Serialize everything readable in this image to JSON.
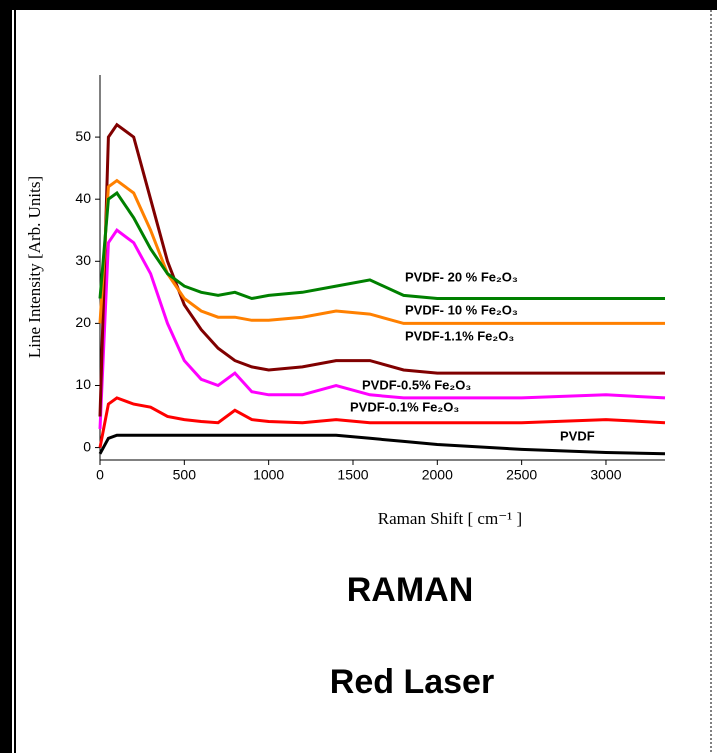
{
  "chart_data": {
    "type": "line",
    "title": "RAMAN",
    "subtitle": "Red Laser",
    "x_label": "Raman Shift [ cm⁻¹ ]",
    "y_label": "Line Intensity [Arb. Units]",
    "xlim": [
      0,
      3350
    ],
    "ylim": [
      -2,
      60
    ],
    "xticks": [
      0,
      500,
      1000,
      1500,
      2000,
      2500,
      3000
    ],
    "yticks": [
      0,
      10,
      20,
      30,
      40,
      50
    ],
    "x": [
      0,
      50,
      100,
      200,
      300,
      400,
      500,
      600,
      700,
      800,
      900,
      1000,
      1200,
      1400,
      1600,
      1800,
      2000,
      2500,
      3000,
      3350
    ],
    "series": [
      {
        "name": "PVDF",
        "color": "#000000",
        "values": [
          -1,
          1.5,
          2,
          2,
          2,
          2,
          2,
          2,
          2,
          2,
          2,
          2,
          2,
          2,
          1.5,
          1,
          0.5,
          -0.3,
          -0.8,
          -1
        ]
      },
      {
        "name": "PVDF-0.1% Fe₂O₃",
        "color": "#ff0000",
        "values": [
          0,
          7,
          8,
          7,
          6.5,
          5,
          4.5,
          4.2,
          4,
          6,
          4.5,
          4.2,
          4,
          4.5,
          4,
          4,
          4,
          4,
          4.5,
          4
        ]
      },
      {
        "name": "PVDF-0.5% Fe₂O₃",
        "color": "#ff00ff",
        "values": [
          3,
          33,
          35,
          33,
          28,
          20,
          14,
          11,
          10,
          12,
          9,
          8.5,
          8.5,
          10,
          8.5,
          8,
          8,
          8,
          8.5,
          8
        ]
      },
      {
        "name": "PVDF-1.1% Fe₂O₃",
        "color": "#800000",
        "values": [
          5,
          50,
          52,
          50,
          40,
          30,
          23,
          19,
          16,
          14,
          13,
          12.5,
          13,
          14,
          14,
          12.5,
          12,
          12,
          12,
          12
        ]
      },
      {
        "name": "PVDF- 10 % Fe₂O₃",
        "color": "#ff8000",
        "values": [
          20,
          42,
          43,
          41,
          35,
          28,
          24,
          22,
          21,
          21,
          20.5,
          20.5,
          21,
          22,
          21.5,
          20,
          20,
          20,
          20,
          20
        ]
      },
      {
        "name": "PVDF- 20 % Fe₂O₃",
        "color": "#008000",
        "values": [
          24,
          40,
          41,
          37,
          32,
          28,
          26,
          25,
          24.5,
          25,
          24,
          24.5,
          25,
          26,
          27,
          24.5,
          24,
          24,
          24,
          24
        ]
      }
    ]
  }
}
